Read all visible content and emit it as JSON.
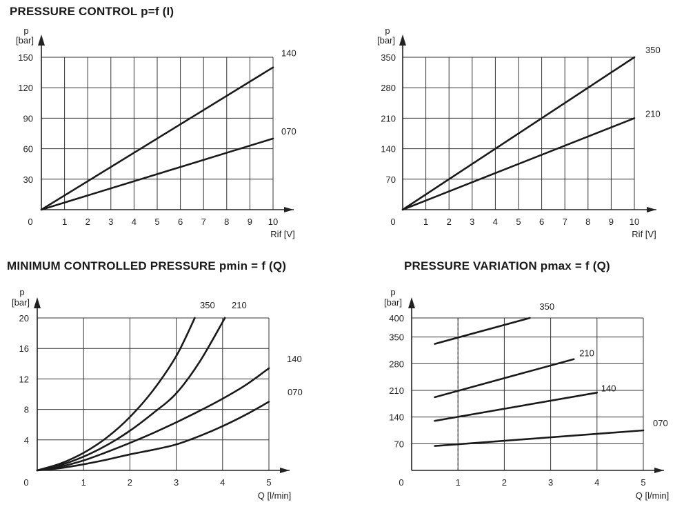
{
  "titles": {
    "top": "PRESSURE CONTROL  p=f (I)",
    "bottom_left": "MINIMUM CONTROLLED PRESSURE pmin = f (Q)",
    "bottom_right": "PRESSURE VARIATION pmax = f (Q)"
  },
  "chart_data": [
    {
      "type": "line",
      "ylabel": "p",
      "yunit": "[bar]",
      "xlabel": "Rif [V]",
      "xlim": [
        0,
        10
      ],
      "ylim": [
        0,
        150
      ],
      "x_ticks": [
        "0",
        "1",
        "2",
        "3",
        "4",
        "5",
        "6",
        "7",
        "8",
        "9",
        "10"
      ],
      "y_ticks": [
        "30",
        "60",
        "90",
        "120",
        "150"
      ],
      "grid": true,
      "series": [
        {
          "name": "140",
          "x": [
            0,
            10
          ],
          "y": [
            0,
            140
          ]
        },
        {
          "name": "070",
          "x": [
            0,
            10
          ],
          "y": [
            0,
            70
          ]
        }
      ]
    },
    {
      "type": "line",
      "ylabel": "p",
      "yunit": "[bar]",
      "xlabel": "Rif [V]",
      "xlim": [
        0,
        10
      ],
      "ylim": [
        0,
        350
      ],
      "x_ticks": [
        "0",
        "1",
        "2",
        "3",
        "4",
        "5",
        "6",
        "7",
        "8",
        "9",
        "10"
      ],
      "y_ticks": [
        "70",
        "140",
        "210",
        "280",
        "350"
      ],
      "grid": true,
      "series": [
        {
          "name": "350",
          "x": [
            0,
            10
          ],
          "y": [
            0,
            350
          ]
        },
        {
          "name": "210",
          "x": [
            0,
            10
          ],
          "y": [
            0,
            210
          ]
        }
      ]
    },
    {
      "type": "line",
      "ylabel": "p",
      "yunit": "[bar]",
      "xlabel": "Q [l/min]",
      "xlim": [
        0,
        5
      ],
      "ylim": [
        0,
        20
      ],
      "x_ticks": [
        "0",
        "1",
        "2",
        "3",
        "4",
        "5"
      ],
      "y_ticks": [
        "4",
        "8",
        "12",
        "16",
        "20"
      ],
      "grid": true,
      "series": [
        {
          "name": "350",
          "x": [
            0,
            0.5,
            1,
            1.5,
            2,
            2.5,
            3,
            3.4
          ],
          "y": [
            0,
            0.9,
            2.3,
            4.3,
            7,
            10.5,
            15,
            20
          ]
        },
        {
          "name": "210",
          "x": [
            0,
            0.5,
            1,
            1.5,
            2,
            2.5,
            3,
            3.5,
            4.05
          ],
          "y": [
            0,
            0.7,
            1.8,
            3.3,
            5.2,
            7.5,
            10.1,
            14.2,
            20
          ]
        },
        {
          "name": "140",
          "x": [
            0,
            0.5,
            1,
            1.5,
            2,
            2.5,
            3,
            3.5,
            4,
            4.5,
            5
          ],
          "y": [
            0,
            0.5,
            1.3,
            2.4,
            3.6,
            4.9,
            6.3,
            7.8,
            9.4,
            11.2,
            13.4
          ]
        },
        {
          "name": "070",
          "x": [
            0,
            0.5,
            1,
            1.5,
            2,
            2.5,
            3,
            3.5,
            4,
            4.5,
            5
          ],
          "y": [
            0,
            0.3,
            0.8,
            1.4,
            2.1,
            2.7,
            3.4,
            4.5,
            5.8,
            7.3,
            9
          ]
        }
      ]
    },
    {
      "type": "line",
      "ylabel": "p",
      "yunit": "[bar]",
      "xlabel": "Q [l/min]",
      "xlim": [
        0,
        5
      ],
      "ylim": [
        0,
        400
      ],
      "x_ticks": [
        "0",
        "1",
        "2",
        "3",
        "4",
        "5"
      ],
      "y_ticks": [
        "70",
        "140",
        "210",
        "280",
        "350",
        "400"
      ],
      "grid": true,
      "reference_line_x": 1,
      "series": [
        {
          "name": "350",
          "x": [
            0.5,
            2.55
          ],
          "y": [
            332,
            400
          ]
        },
        {
          "name": "210",
          "x": [
            0.5,
            3.5
          ],
          "y": [
            192,
            292
          ]
        },
        {
          "name": "140",
          "x": [
            0.5,
            4
          ],
          "y": [
            130,
            204
          ]
        },
        {
          "name": "070",
          "x": [
            0.5,
            5
          ],
          "y": [
            64,
            105
          ]
        }
      ]
    }
  ]
}
